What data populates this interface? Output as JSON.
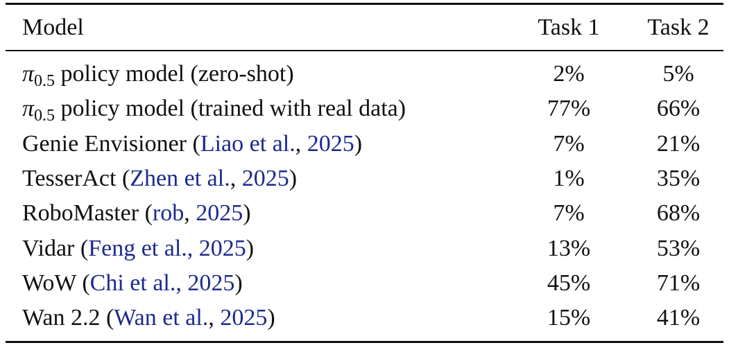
{
  "table": {
    "header": [
      "Model",
      "Task 1",
      "Task 2"
    ],
    "link_color": "#1c2a8c",
    "rows": [
      {
        "model": [
          {
            "text": "π"
          },
          {
            "text": "0.5",
            "sub": true
          },
          {
            "text": " policy model (zero-shot)"
          }
        ],
        "task1": "2%",
        "task2": "5%"
      },
      {
        "model": [
          {
            "text": "π"
          },
          {
            "text": "0.5",
            "sub": true
          },
          {
            "text": " policy model (trained with real data)"
          }
        ],
        "task1": "77%",
        "task2": "66%"
      },
      {
        "model": [
          {
            "text": "Genie Envisioner ("
          },
          {
            "text": "Liao et al.",
            "link": true
          },
          {
            "text": ", "
          },
          {
            "text": "2025",
            "link": true
          },
          {
            "text": ")"
          }
        ],
        "task1": "7%",
        "task2": "21%"
      },
      {
        "model": [
          {
            "text": "TesserAct ("
          },
          {
            "text": "Zhen et al.",
            "link": true
          },
          {
            "text": ", "
          },
          {
            "text": "2025",
            "link": true
          },
          {
            "text": ")"
          }
        ],
        "task1": "1%",
        "task2": "35%"
      },
      {
        "model": [
          {
            "text": "RoboMaster ("
          },
          {
            "text": "rob",
            "link": true
          },
          {
            "text": ", "
          },
          {
            "text": "2025",
            "link": true
          },
          {
            "text": ")"
          }
        ],
        "task1": "7%",
        "task2": "68%"
      },
      {
        "model": [
          {
            "text": "Vidar ("
          },
          {
            "text": "Feng et al., 2025",
            "link": true
          },
          {
            "text": ")"
          }
        ],
        "task1": "13%",
        "task2": "53%"
      },
      {
        "model": [
          {
            "text": "WoW ("
          },
          {
            "text": "Chi et al., 2025",
            "link": true
          },
          {
            "text": ")"
          }
        ],
        "task1": "45%",
        "task2": "71%"
      },
      {
        "model": [
          {
            "text": "Wan 2.2 ("
          },
          {
            "text": "Wan et al.",
            "link": true
          },
          {
            "text": ", "
          },
          {
            "text": "2025",
            "link": true
          },
          {
            "text": ")"
          }
        ],
        "task1": "15%",
        "task2": "41%"
      }
    ]
  }
}
